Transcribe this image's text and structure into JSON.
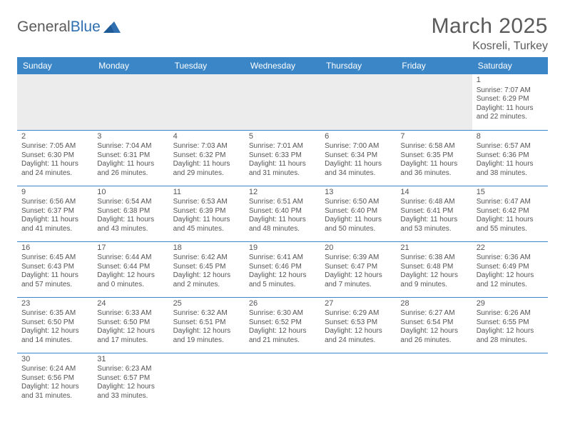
{
  "logo": {
    "text_a": "General",
    "text_b": "Blue",
    "triangle_color": "#2f6fb0"
  },
  "header": {
    "title": "March 2025",
    "location": "Kosreli, Turkey"
  },
  "colors": {
    "header_bg": "#3b86c6",
    "header_fg": "#ffffff",
    "border": "#3b86c6",
    "text": "#555555",
    "empty_bg": "#ececec",
    "page_bg": "#ffffff"
  },
  "weekdays": [
    "Sunday",
    "Monday",
    "Tuesday",
    "Wednesday",
    "Thursday",
    "Friday",
    "Saturday"
  ],
  "weeks": [
    [
      null,
      null,
      null,
      null,
      null,
      null,
      {
        "n": "1",
        "sr": "Sunrise: 7:07 AM",
        "ss": "Sunset: 6:29 PM",
        "d1": "Daylight: 11 hours",
        "d2": "and 22 minutes."
      }
    ],
    [
      {
        "n": "2",
        "sr": "Sunrise: 7:05 AM",
        "ss": "Sunset: 6:30 PM",
        "d1": "Daylight: 11 hours",
        "d2": "and 24 minutes."
      },
      {
        "n": "3",
        "sr": "Sunrise: 7:04 AM",
        "ss": "Sunset: 6:31 PM",
        "d1": "Daylight: 11 hours",
        "d2": "and 26 minutes."
      },
      {
        "n": "4",
        "sr": "Sunrise: 7:03 AM",
        "ss": "Sunset: 6:32 PM",
        "d1": "Daylight: 11 hours",
        "d2": "and 29 minutes."
      },
      {
        "n": "5",
        "sr": "Sunrise: 7:01 AM",
        "ss": "Sunset: 6:33 PM",
        "d1": "Daylight: 11 hours",
        "d2": "and 31 minutes."
      },
      {
        "n": "6",
        "sr": "Sunrise: 7:00 AM",
        "ss": "Sunset: 6:34 PM",
        "d1": "Daylight: 11 hours",
        "d2": "and 34 minutes."
      },
      {
        "n": "7",
        "sr": "Sunrise: 6:58 AM",
        "ss": "Sunset: 6:35 PM",
        "d1": "Daylight: 11 hours",
        "d2": "and 36 minutes."
      },
      {
        "n": "8",
        "sr": "Sunrise: 6:57 AM",
        "ss": "Sunset: 6:36 PM",
        "d1": "Daylight: 11 hours",
        "d2": "and 38 minutes."
      }
    ],
    [
      {
        "n": "9",
        "sr": "Sunrise: 6:56 AM",
        "ss": "Sunset: 6:37 PM",
        "d1": "Daylight: 11 hours",
        "d2": "and 41 minutes."
      },
      {
        "n": "10",
        "sr": "Sunrise: 6:54 AM",
        "ss": "Sunset: 6:38 PM",
        "d1": "Daylight: 11 hours",
        "d2": "and 43 minutes."
      },
      {
        "n": "11",
        "sr": "Sunrise: 6:53 AM",
        "ss": "Sunset: 6:39 PM",
        "d1": "Daylight: 11 hours",
        "d2": "and 45 minutes."
      },
      {
        "n": "12",
        "sr": "Sunrise: 6:51 AM",
        "ss": "Sunset: 6:40 PM",
        "d1": "Daylight: 11 hours",
        "d2": "and 48 minutes."
      },
      {
        "n": "13",
        "sr": "Sunrise: 6:50 AM",
        "ss": "Sunset: 6:40 PM",
        "d1": "Daylight: 11 hours",
        "d2": "and 50 minutes."
      },
      {
        "n": "14",
        "sr": "Sunrise: 6:48 AM",
        "ss": "Sunset: 6:41 PM",
        "d1": "Daylight: 11 hours",
        "d2": "and 53 minutes."
      },
      {
        "n": "15",
        "sr": "Sunrise: 6:47 AM",
        "ss": "Sunset: 6:42 PM",
        "d1": "Daylight: 11 hours",
        "d2": "and 55 minutes."
      }
    ],
    [
      {
        "n": "16",
        "sr": "Sunrise: 6:45 AM",
        "ss": "Sunset: 6:43 PM",
        "d1": "Daylight: 11 hours",
        "d2": "and 57 minutes."
      },
      {
        "n": "17",
        "sr": "Sunrise: 6:44 AM",
        "ss": "Sunset: 6:44 PM",
        "d1": "Daylight: 12 hours",
        "d2": "and 0 minutes."
      },
      {
        "n": "18",
        "sr": "Sunrise: 6:42 AM",
        "ss": "Sunset: 6:45 PM",
        "d1": "Daylight: 12 hours",
        "d2": "and 2 minutes."
      },
      {
        "n": "19",
        "sr": "Sunrise: 6:41 AM",
        "ss": "Sunset: 6:46 PM",
        "d1": "Daylight: 12 hours",
        "d2": "and 5 minutes."
      },
      {
        "n": "20",
        "sr": "Sunrise: 6:39 AM",
        "ss": "Sunset: 6:47 PM",
        "d1": "Daylight: 12 hours",
        "d2": "and 7 minutes."
      },
      {
        "n": "21",
        "sr": "Sunrise: 6:38 AM",
        "ss": "Sunset: 6:48 PM",
        "d1": "Daylight: 12 hours",
        "d2": "and 9 minutes."
      },
      {
        "n": "22",
        "sr": "Sunrise: 6:36 AM",
        "ss": "Sunset: 6:49 PM",
        "d1": "Daylight: 12 hours",
        "d2": "and 12 minutes."
      }
    ],
    [
      {
        "n": "23",
        "sr": "Sunrise: 6:35 AM",
        "ss": "Sunset: 6:50 PM",
        "d1": "Daylight: 12 hours",
        "d2": "and 14 minutes."
      },
      {
        "n": "24",
        "sr": "Sunrise: 6:33 AM",
        "ss": "Sunset: 6:50 PM",
        "d1": "Daylight: 12 hours",
        "d2": "and 17 minutes."
      },
      {
        "n": "25",
        "sr": "Sunrise: 6:32 AM",
        "ss": "Sunset: 6:51 PM",
        "d1": "Daylight: 12 hours",
        "d2": "and 19 minutes."
      },
      {
        "n": "26",
        "sr": "Sunrise: 6:30 AM",
        "ss": "Sunset: 6:52 PM",
        "d1": "Daylight: 12 hours",
        "d2": "and 21 minutes."
      },
      {
        "n": "27",
        "sr": "Sunrise: 6:29 AM",
        "ss": "Sunset: 6:53 PM",
        "d1": "Daylight: 12 hours",
        "d2": "and 24 minutes."
      },
      {
        "n": "28",
        "sr": "Sunrise: 6:27 AM",
        "ss": "Sunset: 6:54 PM",
        "d1": "Daylight: 12 hours",
        "d2": "and 26 minutes."
      },
      {
        "n": "29",
        "sr": "Sunrise: 6:26 AM",
        "ss": "Sunset: 6:55 PM",
        "d1": "Daylight: 12 hours",
        "d2": "and 28 minutes."
      }
    ],
    [
      {
        "n": "30",
        "sr": "Sunrise: 6:24 AM",
        "ss": "Sunset: 6:56 PM",
        "d1": "Daylight: 12 hours",
        "d2": "and 31 minutes."
      },
      {
        "n": "31",
        "sr": "Sunrise: 6:23 AM",
        "ss": "Sunset: 6:57 PM",
        "d1": "Daylight: 12 hours",
        "d2": "and 33 minutes."
      },
      null,
      null,
      null,
      null,
      null
    ]
  ]
}
